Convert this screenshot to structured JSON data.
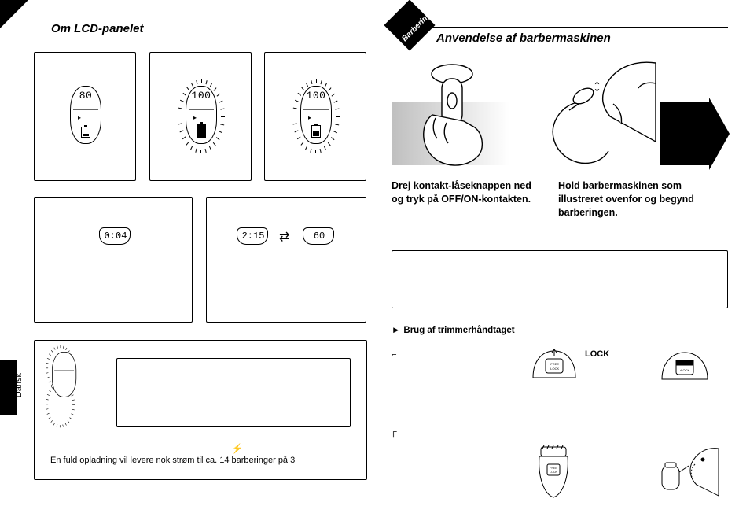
{
  "corner_badge": {
    "label": "Barbering"
  },
  "left": {
    "title": "Om LCD-panelet",
    "panels": {
      "a": {
        "value": "80"
      },
      "b": {
        "value": "100"
      },
      "c": {
        "value": "100"
      },
      "d": {
        "value": "0:04"
      },
      "e": {
        "value_left": "2:15",
        "value_right": "60",
        "swap_glyph": "⇄"
      }
    },
    "footnote_plug_glyph": "⚡",
    "footnote": "En fuld opladning vil levere nok strøm til ca. 14 barberinger på 3"
  },
  "side_tab_label": "Dansk",
  "right": {
    "title": "Anvendelse af barbermaskinen",
    "updown_glyph": "↕",
    "instr_left": "Drej kontakt-låseknappen ned og tryk på OFF/ON-kontakten.",
    "instr_right": "Hold barbermaskinen som illustreret ovenfor og begynd barberingen.",
    "sub_trimmer": "Brug af trimmerhåndtaget",
    "sub_tri_glyph": "►",
    "lock_label": "LOCK",
    "mini1_glyph": "⌐",
    "mini2_glyph": "╓"
  },
  "style": {
    "text_color": "#000000",
    "bg": "#ffffff",
    "title_fontsize": 15,
    "body_fontsize": 11,
    "instr_fontsize": 12.5
  }
}
